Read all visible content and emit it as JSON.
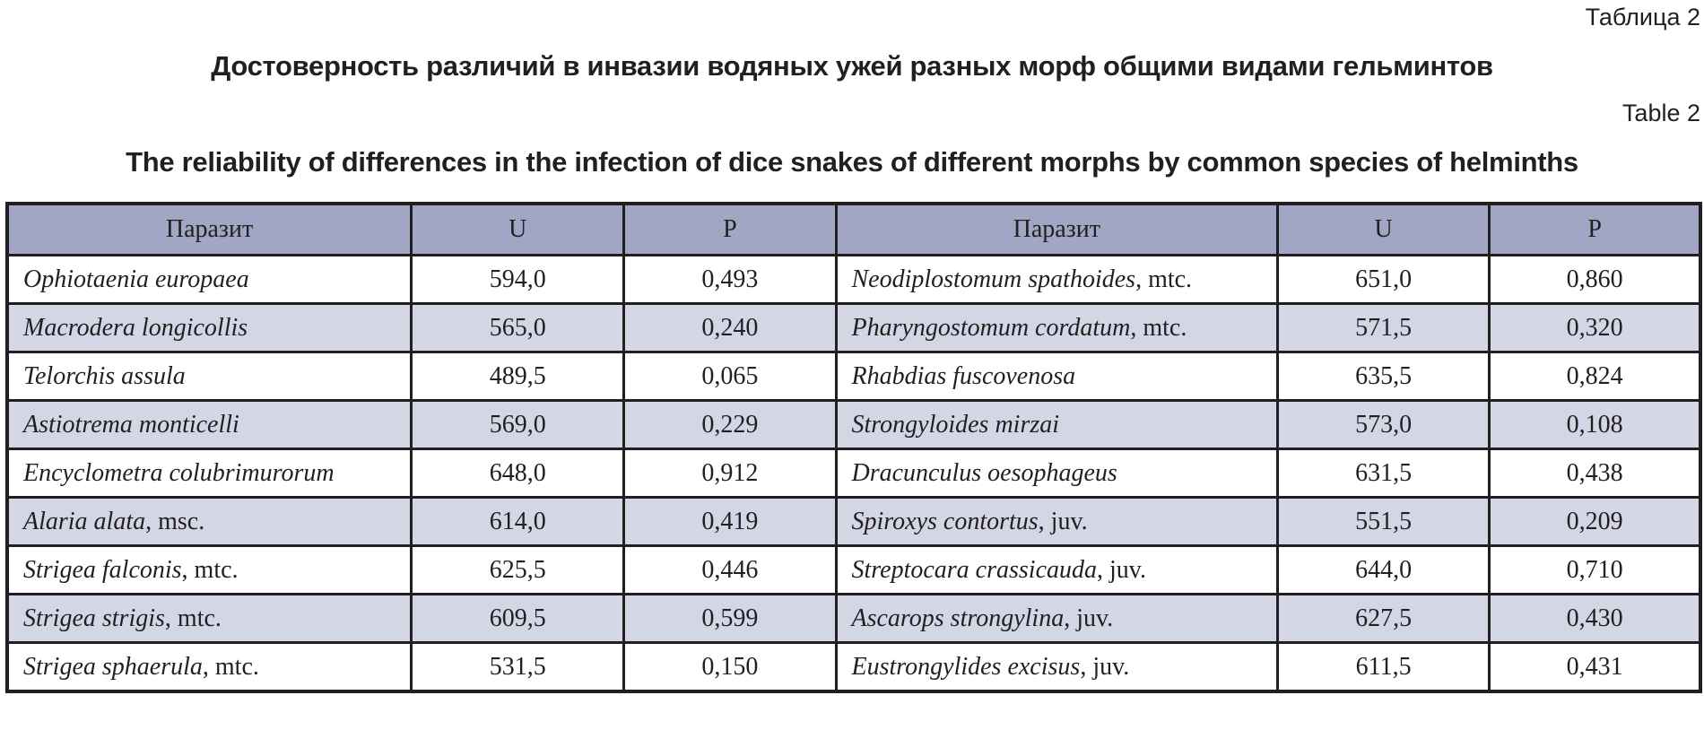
{
  "caption_ru": "Таблица 2",
  "title_ru": "Достоверность различий в инвазии водяных ужей разных морф общими видами гельминтов",
  "caption_en": "Table 2",
  "title_en": "The reliability of differences in the infection of dice snakes of different morphs by common species of helminths",
  "table": {
    "headers": [
      "Паразит",
      "U",
      "P",
      "Паразит",
      "U",
      "P"
    ],
    "rows": [
      {
        "l_species": "Ophiotaenia europaea",
        "l_suffix": "",
        "l_u": "594,0",
        "l_p": "0,493",
        "r_species": "Neodiplostomum spathoides",
        "r_suffix": ", mtc.",
        "r_u": "651,0",
        "r_p": "0,860"
      },
      {
        "l_species": "Macrodera longicollis",
        "l_suffix": "",
        "l_u": "565,0",
        "l_p": "0,240",
        "r_species": "Pharyngostomum cordatum",
        "r_suffix": ", mtc.",
        "r_u": "571,5",
        "r_p": "0,320"
      },
      {
        "l_species": " Telorchis assula",
        "l_suffix": "",
        "l_u": "489,5",
        "l_p": "0,065",
        "r_species": "Rhabdias fuscovenosa",
        "r_suffix": "",
        "r_u": "635,5",
        "r_p": "0,824"
      },
      {
        "l_species": "Astiotrema monticelli",
        "l_suffix": "",
        "l_u": "569,0",
        "l_p": "0,229",
        "r_species": "Strongyloides mirzai",
        "r_suffix": "",
        "r_u": "573,0",
        "r_p": "0,108"
      },
      {
        "l_species": "Encyclometra colubrimurorum",
        "l_suffix": "",
        "l_u": "648,0",
        "l_p": "0,912",
        "r_species": "Dracunculus oesophageus",
        "r_suffix": "",
        "r_u": "631,5",
        "r_p": "0,438"
      },
      {
        "l_species": "Alaria alata",
        "l_suffix": ", msc.",
        "l_u": "614,0",
        "l_p": "0,419",
        "r_species": "Spiroxys contortus",
        "r_suffix": ", juv.",
        "r_u": "551,5",
        "r_p": "0,209"
      },
      {
        "l_species": "Strigea falconis",
        "l_suffix": ", mtc.",
        "l_u": "625,5",
        "l_p": "0,446",
        "r_species": "Streptocara crassicauda",
        "r_suffix": ", juv.",
        "r_u": "644,0",
        "r_p": "0,710"
      },
      {
        "l_species": "Strigea strigis",
        "l_suffix": ", mtc.",
        "l_u": "609,5",
        "l_p": "0,599",
        "r_species": "Ascarops strongylina",
        "r_suffix": ", juv.",
        "r_u": "627,5",
        "r_p": "0,430"
      },
      {
        "l_species": "Strigea sphaerula",
        "l_suffix": ", mtc.",
        "l_u": "531,5",
        "l_p": "0,150",
        "r_species": "Eustrongylides excisus",
        "r_suffix": ", juv.",
        "r_u": "611,5",
        "r_p": "0,431"
      }
    ]
  },
  "colors": {
    "header_bg": "#a0a6c3",
    "alt_row_bg": "#d3d6e5",
    "row_bg": "#ffffff",
    "border": "#231f20",
    "text": "#231f20"
  },
  "chart_data": {
    "type": "table",
    "title": "The reliability of differences in the infection of dice snakes of different morphs by common species of helminths",
    "columns": [
      "Паразит",
      "U",
      "P"
    ],
    "rows": [
      [
        "Ophiotaenia europaea",
        594.0,
        0.493
      ],
      [
        "Macrodera longicollis",
        565.0,
        0.24
      ],
      [
        "Telorchis assula",
        489.5,
        0.065
      ],
      [
        "Astiotrema monticelli",
        569.0,
        0.229
      ],
      [
        "Encyclometra colubrimurorum",
        648.0,
        0.912
      ],
      [
        "Alaria alata, msc.",
        614.0,
        0.419
      ],
      [
        "Strigea falconis, mtc.",
        625.5,
        0.446
      ],
      [
        "Strigea strigis, mtc.",
        609.5,
        0.599
      ],
      [
        "Strigea sphaerula, mtc.",
        531.5,
        0.15
      ],
      [
        "Neodiplostomum spathoides, mtc.",
        651.0,
        0.86
      ],
      [
        "Pharyngostomum cordatum, mtc.",
        571.5,
        0.32
      ],
      [
        "Rhabdias fuscovenosa",
        635.5,
        0.824
      ],
      [
        "Strongyloides mirzai",
        573.0,
        0.108
      ],
      [
        "Dracunculus oesophageus",
        631.5,
        0.438
      ],
      [
        "Spiroxys contortus, juv.",
        551.5,
        0.209
      ],
      [
        "Streptocara crassicauda, juv.",
        644.0,
        0.71
      ],
      [
        "Ascarops strongylina, juv.",
        627.5,
        0.43
      ],
      [
        "Eustrongylides excisus, juv.",
        611.5,
        0.431
      ]
    ]
  }
}
